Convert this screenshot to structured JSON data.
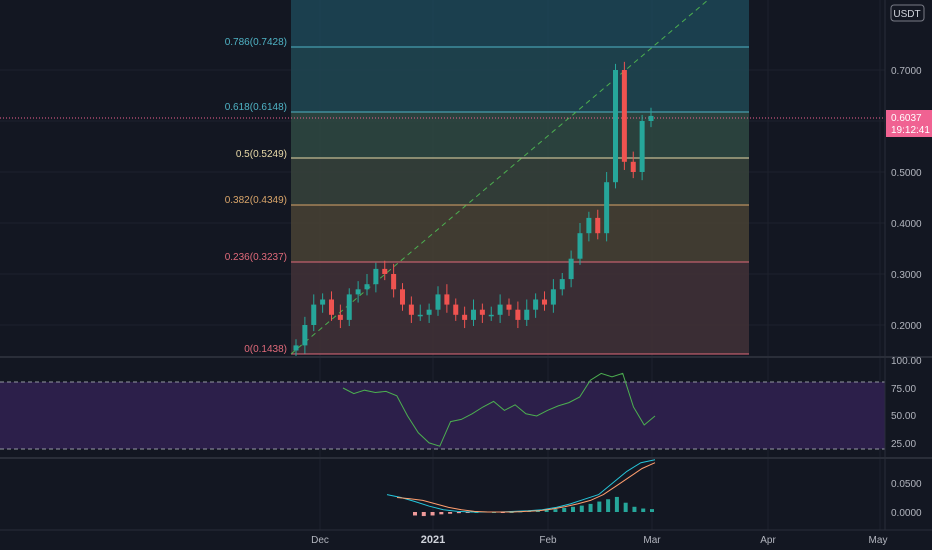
{
  "price_axis": {
    "currency": "USDT",
    "ticks": [
      "0.7000",
      "0.6000",
      "0.5000",
      "0.4000",
      "0.3000",
      "0.2000"
    ],
    "current_price": "0.6037",
    "countdown": "19:12:41"
  },
  "rsi_axis": {
    "ticks": [
      "100.00",
      "75.00",
      "50.00",
      "25.00"
    ]
  },
  "macd_axis": {
    "ticks": [
      "0.0500",
      "0.0000"
    ]
  },
  "time_axis": {
    "ticks": [
      "Dec",
      "2021",
      "Feb",
      "Mar",
      "Apr",
      "May"
    ]
  },
  "fib_levels": [
    {
      "label": "0.786(0.7428)",
      "color": "#4fb3c5"
    },
    {
      "label": "0.618(0.6148)",
      "color": "#4fb3c5"
    },
    {
      "label": "0.5(0.5249)",
      "color": "#e8d9a8"
    },
    {
      "label": "0.382(0.4349)",
      "color": "#d9a56a"
    },
    {
      "label": "0.236(0.3237)",
      "color": "#e06a7a"
    },
    {
      "label": "0(0.1438)",
      "color": "#e06a7a"
    }
  ],
  "colors": {
    "up": "#26a69a",
    "down": "#ef5350",
    "rsi_line": "#4caf50",
    "macd_line": "#26c6da",
    "signal_line": "#ff9e6e",
    "price_badge": "#f06292"
  },
  "chart_data": [
    {
      "type": "candlestick",
      "approximate_closes": [
        0.16,
        0.2,
        0.24,
        0.25,
        0.22,
        0.21,
        0.26,
        0.27,
        0.28,
        0.31,
        0.3,
        0.27,
        0.24,
        0.22,
        0.22,
        0.23,
        0.26,
        0.24,
        0.22,
        0.21,
        0.23,
        0.22,
        0.22,
        0.24,
        0.23,
        0.21,
        0.23,
        0.25,
        0.24,
        0.27,
        0.29,
        0.33,
        0.38,
        0.41,
        0.38,
        0.48,
        0.7,
        0.52,
        0.5,
        0.6,
        0.61
      ],
      "last_price": 0.6037
    },
    {
      "type": "line",
      "name": "RSI",
      "ylim": [
        0,
        100
      ],
      "values": [
        75,
        70,
        73,
        71,
        72,
        68,
        50,
        35,
        26,
        23,
        45,
        47,
        52,
        58,
        63,
        55,
        60,
        52,
        50,
        55,
        59,
        62,
        67,
        82,
        88,
        85,
        88,
        58,
        42,
        50
      ],
      "bands": [
        30,
        70
      ]
    },
    {
      "type": "bar",
      "name": "MACD histogram",
      "values": [
        -0.006,
        -0.007,
        -0.006,
        -0.004,
        -0.003,
        -0.002,
        -0.001,
        0.0,
        0.001,
        0.0,
        -0.001,
        0.0,
        0.001,
        0.002,
        0.003,
        0.004,
        0.005,
        0.007,
        0.009,
        0.011,
        0.014,
        0.018,
        0.022,
        0.026,
        0.016,
        0.009,
        0.006,
        0.005
      ],
      "macd_line": [
        0.03,
        0.025,
        0.018,
        0.01,
        0.004,
        0.001,
        0.0,
        0.0,
        0.0,
        0.001,
        0.002,
        0.004,
        0.008,
        0.014,
        0.022,
        0.03,
        0.05,
        0.07,
        0.085,
        0.09
      ],
      "signal_line": [
        0.025,
        0.023,
        0.02,
        0.014,
        0.008,
        0.004,
        0.001,
        0.0,
        0.0,
        0.0,
        0.001,
        0.002,
        0.005,
        0.009,
        0.014,
        0.02,
        0.03,
        0.045,
        0.06,
        0.075,
        0.085
      ]
    }
  ]
}
